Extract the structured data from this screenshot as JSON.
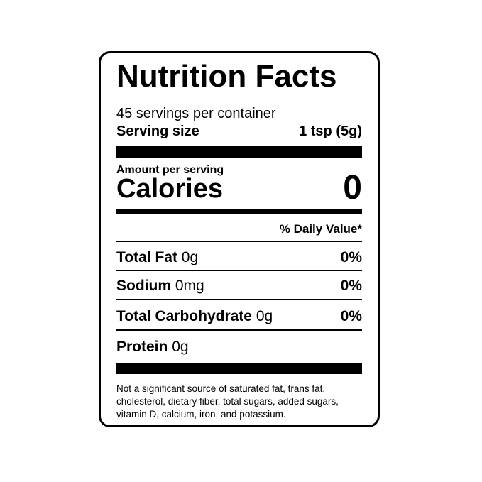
{
  "title": "Nutrition Facts",
  "servings": "45 servings per container",
  "serving_size_label": "Serving size",
  "serving_size_value": "1 tsp (5g)",
  "amount_label": "Amount per serving",
  "calories_label": "Calories",
  "calories_value": "0",
  "dv_header": "% Daily Value*",
  "nutrients": [
    {
      "name": "Total Fat",
      "amount": "0g",
      "dv": "0%"
    },
    {
      "name": "Sodium",
      "amount": "0mg",
      "dv": "0%"
    },
    {
      "name": "Total Carbohydrate",
      "amount": "0g",
      "dv": "0%"
    },
    {
      "name": "Protein",
      "amount": "0g",
      "dv": ""
    }
  ],
  "footnote": "Not a significant source of saturated fat, trans fat, cholesterol, dietary fiber, total sugars, added sugars, vitamin D, calcium, iron, and potassium."
}
